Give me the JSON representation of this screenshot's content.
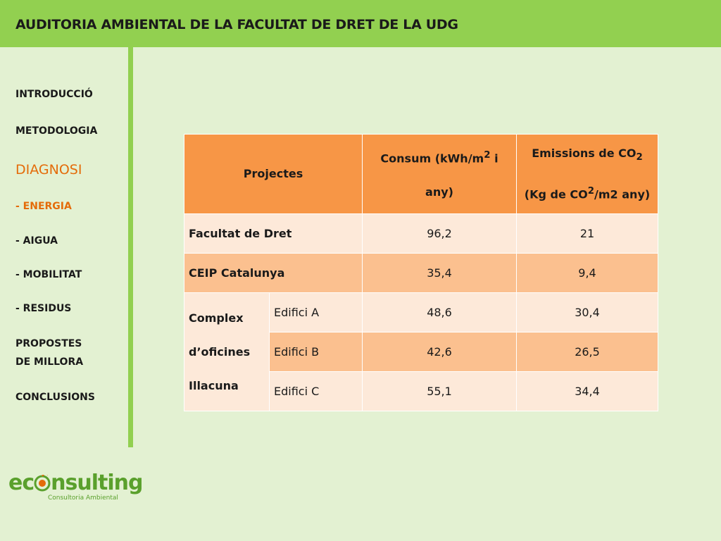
{
  "header": {
    "title": "AUDITORIA AMBIENTAL DE LA FACULTAT DE DRET DE LA UDG"
  },
  "sidebar": {
    "items": [
      "INTRODUCCIÓ",
      "METODOLOGIA",
      "DIAGNOSI",
      "- ENERGIA",
      "- AIGUA",
      "- MOBILITAT",
      "- RESIDUS",
      "PROPOSTES",
      "DE MILLORA",
      "CONCLUSIONS"
    ]
  },
  "table": {
    "header": {
      "projectes": "Projectes",
      "consum": [
        "Consum (kWh/m",
        "2",
        " i",
        "any)"
      ],
      "emissions": [
        "Emissions de CO",
        "2",
        "(Kg de CO",
        "2",
        "/m2 any)"
      ]
    },
    "rows": [
      [
        "Facultat de Dret",
        "96,2",
        "21"
      ],
      [
        "CEIP Catalunya",
        "35,4",
        "9,4"
      ]
    ],
    "group": {
      "label": [
        "Complex",
        "d’oficines",
        "Illacuna"
      ],
      "rows": [
        [
          "Edifici A",
          "48,6",
          "30,4"
        ],
        [
          "Edifici B",
          "42,6",
          "26,5"
        ],
        [
          "Edifici C",
          "55,1",
          "34,4"
        ]
      ]
    }
  },
  "logo": {
    "text": [
      "ec",
      "nsulting"
    ],
    "subtitle": "Consultoria Ambiental"
  }
}
